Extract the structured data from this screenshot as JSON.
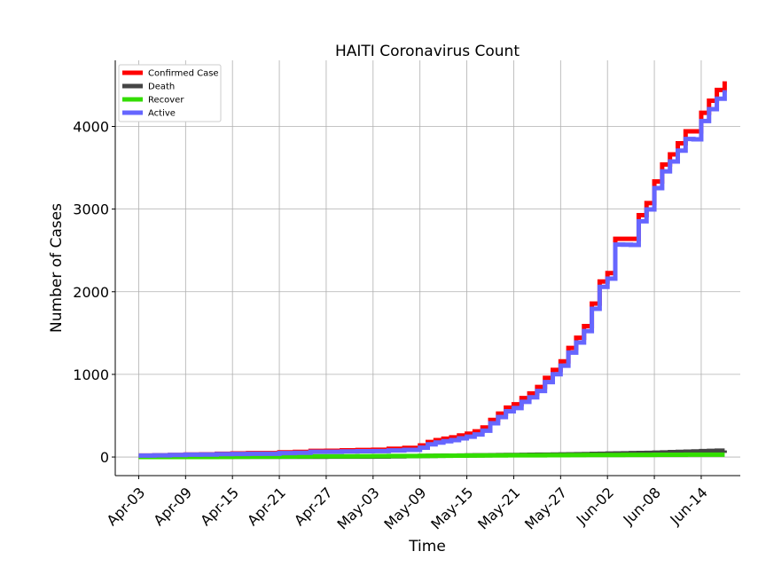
{
  "chart_data": {
    "type": "line",
    "title": "HAITI Coronavirus Count",
    "xlabel": "Time",
    "ylabel": "Number of Cases",
    "x_tick_labels": [
      "Apr-03",
      "Apr-09",
      "Apr-15",
      "Apr-21",
      "Apr-27",
      "May-03",
      "May-09",
      "May-15",
      "May-21",
      "May-27",
      "Jun-02",
      "Jun-08",
      "Jun-14"
    ],
    "y_ticks": [
      0,
      1000,
      2000,
      3000,
      4000
    ],
    "ylim": [
      -225,
      4800
    ],
    "xlim_start": "Mar-31",
    "xlim_end": "Jun-19",
    "grid": true,
    "legend_position": "top-left",
    "x": [
      "Apr-03",
      "Apr-05",
      "Apr-07",
      "Apr-09",
      "Apr-11",
      "Apr-13",
      "Apr-15",
      "Apr-17",
      "Apr-19",
      "Apr-21",
      "Apr-23",
      "Apr-25",
      "Apr-27",
      "Apr-29",
      "May-01",
      "May-03",
      "May-05",
      "May-07",
      "May-09",
      "May-10",
      "May-11",
      "May-12",
      "May-13",
      "May-14",
      "May-15",
      "May-16",
      "May-17",
      "May-18",
      "May-19",
      "May-20",
      "May-21",
      "May-22",
      "May-23",
      "May-24",
      "May-25",
      "May-26",
      "May-27",
      "May-28",
      "May-29",
      "May-30",
      "May-31",
      "Jun-01",
      "Jun-02",
      "Jun-03",
      "Jun-04",
      "Jun-05",
      "Jun-06",
      "Jun-07",
      "Jun-08",
      "Jun-09",
      "Jun-10",
      "Jun-11",
      "Jun-12",
      "Jun-13",
      "Jun-14",
      "Jun-15",
      "Jun-16",
      "Jun-17"
    ],
    "series": [
      {
        "name": "Confirmed Case",
        "color": "#ff0000",
        "values": [
          18,
          21,
          25,
          30,
          33,
          40,
          43,
          47,
          48,
          57,
          62,
          74,
          76,
          81,
          85,
          88,
          100,
          110,
          140,
          182,
          205,
          222,
          238,
          261,
          283,
          311,
          358,
          449,
          525,
          598,
          638,
          713,
          770,
          848,
          958,
          1054,
          1158,
          1320,
          1443,
          1584,
          1856,
          2124,
          2226,
          2640,
          2640,
          2640,
          2927,
          3072,
          3334,
          3540,
          3662,
          3796,
          3941,
          3941,
          4165,
          4312,
          4441,
          4547
        ]
      },
      {
        "name": "Death",
        "color": "#454545",
        "values": [
          0,
          1,
          1,
          1,
          2,
          3,
          3,
          3,
          3,
          3,
          3,
          3,
          4,
          4,
          5,
          6,
          8,
          11,
          13,
          14,
          15,
          16,
          17,
          18,
          19,
          20,
          21,
          22,
          23,
          24,
          25,
          26,
          27,
          28,
          29,
          30,
          31,
          33,
          34,
          36,
          38,
          40,
          42,
          44,
          45,
          47,
          49,
          50,
          53,
          56,
          59,
          62,
          65,
          68,
          71,
          74,
          77,
          80
        ]
      },
      {
        "name": "Recover",
        "color": "#33dd00",
        "values": [
          0,
          0,
          0,
          1,
          1,
          2,
          3,
          4,
          5,
          6,
          7,
          8,
          8,
          9,
          10,
          11,
          12,
          13,
          14,
          14,
          15,
          15,
          16,
          17,
          18,
          18,
          19,
          19,
          19,
          20,
          20,
          20,
          21,
          21,
          22,
          22,
          22,
          23,
          23,
          24,
          24,
          25,
          25,
          25,
          26,
          26,
          26,
          26,
          27,
          27,
          27,
          27,
          28,
          28,
          28,
          28,
          28,
          28
        ]
      },
      {
        "name": "Active",
        "color": "#6666ff",
        "values": [
          18,
          20,
          24,
          28,
          30,
          35,
          37,
          40,
          40,
          48,
          52,
          63,
          64,
          68,
          70,
          71,
          80,
          86,
          113,
          154,
          175,
          191,
          205,
          226,
          246,
          273,
          318,
          408,
          483,
          554,
          593,
          667,
          722,
          799,
          907,
          1002,
          1105,
          1264,
          1386,
          1524,
          1794,
          2059,
          2159,
          2571,
          2569,
          2567,
          2852,
          2996,
          3254,
          3457,
          3576,
          3707,
          3848,
          3845,
          4066,
          4210,
          4336,
          4439
        ]
      }
    ]
  }
}
